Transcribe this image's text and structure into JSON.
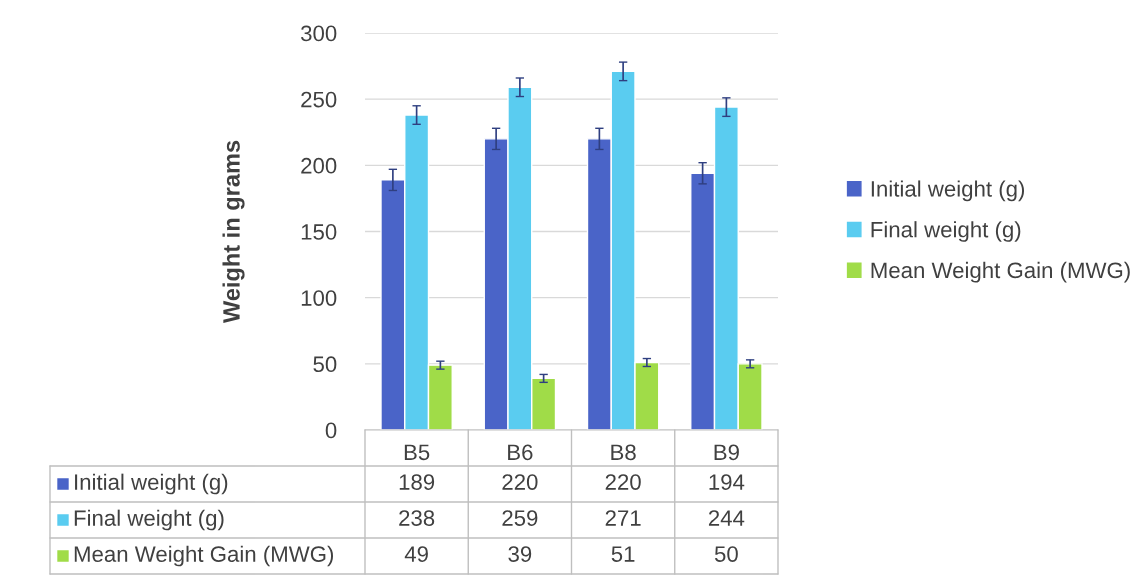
{
  "chart_data": {
    "type": "bar",
    "ylabel": "Weight in grams",
    "categories": [
      "B5",
      "B6",
      "B8",
      "B9"
    ],
    "series": [
      {
        "name": "Initial weight (g)",
        "color": "#4a64c8",
        "values": [
          189,
          220,
          220,
          194
        ],
        "errors": [
          8,
          8,
          8,
          8
        ]
      },
      {
        "name": "Final weight (g)",
        "color": "#5accf0",
        "values": [
          238,
          259,
          271,
          244
        ],
        "errors": [
          7,
          7,
          7,
          7
        ]
      },
      {
        "name": "Mean Weight Gain (MWG)",
        "color": "#a0dc48",
        "values": [
          49,
          39,
          51,
          50
        ],
        "errors": [
          3,
          3,
          3,
          3
        ]
      }
    ],
    "ylim": [
      0,
      300
    ],
    "yticks": [
      0,
      50,
      100,
      150,
      200,
      250,
      300
    ],
    "grid": "y",
    "legend": "right",
    "data_labels": true
  }
}
